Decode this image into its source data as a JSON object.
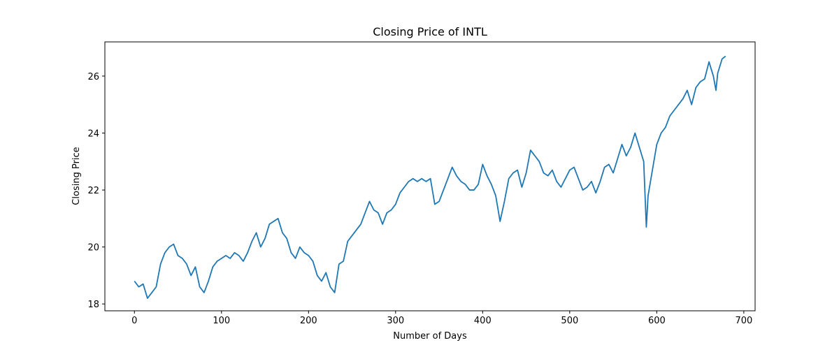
{
  "chart_data": {
    "type": "line",
    "title": "Closing Price of INTL",
    "xlabel": "Number of Days",
    "ylabel": "Closing Price",
    "x": [
      0,
      5,
      10,
      15,
      20,
      25,
      30,
      35,
      40,
      45,
      50,
      55,
      60,
      65,
      70,
      75,
      80,
      85,
      90,
      95,
      100,
      105,
      110,
      115,
      120,
      125,
      130,
      135,
      140,
      145,
      150,
      155,
      160,
      165,
      170,
      175,
      180,
      185,
      190,
      195,
      200,
      205,
      210,
      215,
      220,
      225,
      230,
      235,
      240,
      245,
      250,
      255,
      260,
      265,
      270,
      275,
      280,
      285,
      290,
      295,
      300,
      305,
      310,
      315,
      320,
      325,
      330,
      335,
      340,
      345,
      350,
      355,
      360,
      365,
      370,
      375,
      380,
      385,
      390,
      395,
      400,
      405,
      410,
      415,
      420,
      425,
      430,
      435,
      440,
      445,
      450,
      455,
      460,
      465,
      470,
      475,
      480,
      485,
      490,
      495,
      500,
      505,
      510,
      515,
      520,
      525,
      530,
      535,
      540,
      545,
      550,
      555,
      560,
      565,
      570,
      575,
      580,
      585,
      588,
      590,
      595,
      600,
      605,
      610,
      615,
      620,
      625,
      630,
      635,
      640,
      645,
      650,
      655,
      660,
      665,
      668,
      670,
      675,
      679
    ],
    "series": [
      {
        "name": "Closing Price",
        "color": "#1f77b4",
        "values": [
          18.8,
          18.6,
          18.7,
          18.2,
          18.4,
          18.6,
          19.4,
          19.8,
          20.0,
          20.1,
          19.7,
          19.6,
          19.4,
          19.0,
          19.3,
          18.6,
          18.4,
          18.8,
          19.3,
          19.5,
          19.6,
          19.7,
          19.6,
          19.8,
          19.7,
          19.5,
          19.8,
          20.2,
          20.5,
          20.0,
          20.3,
          20.8,
          20.9,
          21.0,
          20.5,
          20.3,
          19.8,
          19.6,
          20.0,
          19.8,
          19.7,
          19.5,
          19.0,
          18.8,
          19.1,
          18.6,
          18.4,
          19.4,
          19.5,
          20.2,
          20.4,
          20.6,
          20.8,
          21.2,
          21.6,
          21.3,
          21.2,
          20.8,
          21.2,
          21.3,
          21.5,
          21.9,
          22.1,
          22.3,
          22.4,
          22.3,
          22.4,
          22.3,
          22.4,
          21.5,
          21.6,
          22.0,
          22.4,
          22.8,
          22.5,
          22.3,
          22.2,
          22.0,
          22.0,
          22.2,
          22.9,
          22.5,
          22.2,
          21.8,
          20.9,
          21.6,
          22.4,
          22.6,
          22.7,
          22.1,
          22.6,
          23.4,
          23.2,
          23.0,
          22.6,
          22.5,
          22.7,
          22.3,
          22.1,
          22.4,
          22.7,
          22.8,
          22.4,
          22.0,
          22.1,
          22.3,
          21.9,
          22.3,
          22.8,
          22.9,
          22.6,
          23.1,
          23.6,
          23.2,
          23.5,
          24.0,
          23.5,
          23.0,
          20.7,
          21.8,
          22.7,
          23.6,
          24.0,
          24.2,
          24.6,
          24.8,
          25.0,
          25.2,
          25.5,
          25.0,
          25.6,
          25.8,
          25.9,
          26.5,
          26.0,
          25.5,
          26.1,
          26.6,
          26.7
        ]
      }
    ],
    "xlim": [
      -33.95,
      712.95
    ],
    "xticks": [
      0,
      100,
      200,
      300,
      400,
      500,
      600,
      700
    ],
    "ylim": [
      17.76,
      27.2
    ],
    "yticks": [
      18,
      20,
      22,
      24,
      26
    ]
  }
}
